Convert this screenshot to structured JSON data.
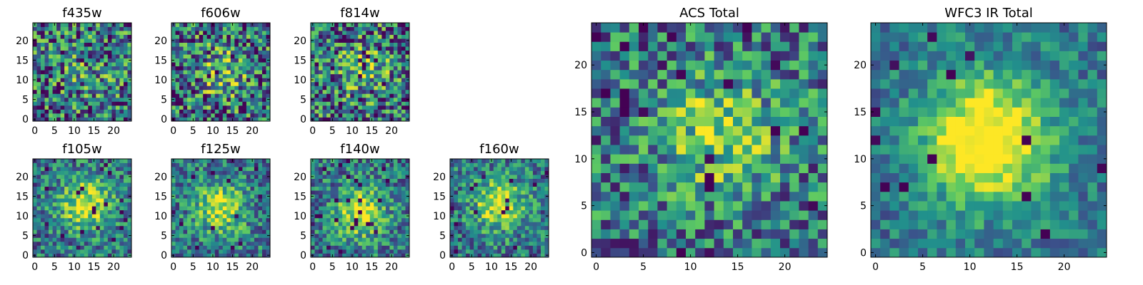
{
  "colormap": {
    "name": "viridis",
    "stops": [
      "#440154",
      "#3b528b",
      "#21918c",
      "#5ec962",
      "#fde725"
    ]
  },
  "chart_data": [
    {
      "id": "f435w",
      "type": "heatmap",
      "title": "f435w",
      "size": 25,
      "xlim": [
        0,
        25
      ],
      "ylim": [
        0,
        25
      ],
      "xticks": [
        0,
        5,
        10,
        15,
        20
      ],
      "yticks": [
        0,
        5,
        10,
        15,
        20
      ],
      "blob": [
        13,
        12,
        0.15
      ],
      "noise": 0.45,
      "dark_frac": 0.04,
      "seed": 11
    },
    {
      "id": "f606w",
      "type": "heatmap",
      "title": "f606w",
      "size": 25,
      "xlim": [
        0,
        25
      ],
      "ylim": [
        0,
        25
      ],
      "xticks": [
        0,
        5,
        10,
        15,
        20
      ],
      "yticks": [
        0,
        5,
        10,
        15,
        20
      ],
      "blob": [
        12,
        12,
        0.3
      ],
      "noise": 0.45,
      "dark_frac": 0.05,
      "seed": 23
    },
    {
      "id": "f814w",
      "type": "heatmap",
      "title": "f814w",
      "size": 25,
      "xlim": [
        0,
        25
      ],
      "ylim": [
        0,
        25
      ],
      "xticks": [
        0,
        5,
        10,
        15,
        20
      ],
      "yticks": [
        0,
        5,
        10,
        15,
        20
      ],
      "blob": [
        13,
        13,
        0.3
      ],
      "noise": 0.45,
      "dark_frac": 0.05,
      "seed": 37
    },
    {
      "id": "f105w",
      "type": "heatmap",
      "title": "f105w",
      "size": 25,
      "xlim": [
        0,
        25
      ],
      "ylim": [
        0,
        25
      ],
      "xticks": [
        0,
        5,
        10,
        15,
        20
      ],
      "yticks": [
        0,
        5,
        10,
        15,
        20
      ],
      "blob": [
        13,
        13,
        0.55
      ],
      "noise": 0.3,
      "dark_frac": 0.03,
      "seed": 41
    },
    {
      "id": "f125w",
      "type": "heatmap",
      "title": "f125w",
      "size": 25,
      "xlim": [
        0,
        25
      ],
      "ylim": [
        0,
        25
      ],
      "xticks": [
        0,
        5,
        10,
        15,
        20
      ],
      "yticks": [
        0,
        5,
        10,
        15,
        20
      ],
      "blob": [
        12,
        12,
        0.5
      ],
      "noise": 0.3,
      "dark_frac": 0.03,
      "seed": 53
    },
    {
      "id": "f140w",
      "type": "heatmap",
      "title": "f140w",
      "size": 25,
      "xlim": [
        0,
        25
      ],
      "ylim": [
        0,
        25
      ],
      "xticks": [
        0,
        5,
        10,
        15,
        20
      ],
      "yticks": [
        0,
        5,
        10,
        15,
        20
      ],
      "blob": [
        12,
        11,
        0.55
      ],
      "noise": 0.3,
      "dark_frac": 0.03,
      "seed": 67
    },
    {
      "id": "f160w",
      "type": "heatmap",
      "title": "f160w",
      "size": 25,
      "xlim": [
        0,
        25
      ],
      "ylim": [
        0,
        25
      ],
      "xticks": [
        0,
        5,
        10,
        15,
        20
      ],
      "yticks": [
        0,
        5,
        10,
        15,
        20
      ],
      "blob": [
        12,
        13,
        0.55
      ],
      "noise": 0.3,
      "dark_frac": 0.03,
      "seed": 79
    },
    {
      "id": "acs-total",
      "type": "heatmap",
      "title": "ACS Total",
      "size": 25,
      "xlim": [
        0,
        25
      ],
      "ylim": [
        0,
        25
      ],
      "xticks": [
        0,
        5,
        10,
        15,
        20
      ],
      "yticks": [
        0,
        5,
        10,
        15,
        20
      ],
      "blob": [
        13,
        13,
        0.4
      ],
      "noise": 0.35,
      "dark_frac": 0.04,
      "seed": 97
    },
    {
      "id": "wfc3-ir-total",
      "type": "heatmap",
      "title": "WFC3 IR Total",
      "size": 25,
      "xlim": [
        0,
        25
      ],
      "ylim": [
        0,
        25
      ],
      "xticks": [
        0,
        5,
        10,
        15,
        20
      ],
      "yticks": [
        0,
        5,
        10,
        15,
        20
      ],
      "blob": [
        12,
        12,
        0.8
      ],
      "noise": 0.2,
      "dark_frac": 0.02,
      "seed": 101
    }
  ]
}
